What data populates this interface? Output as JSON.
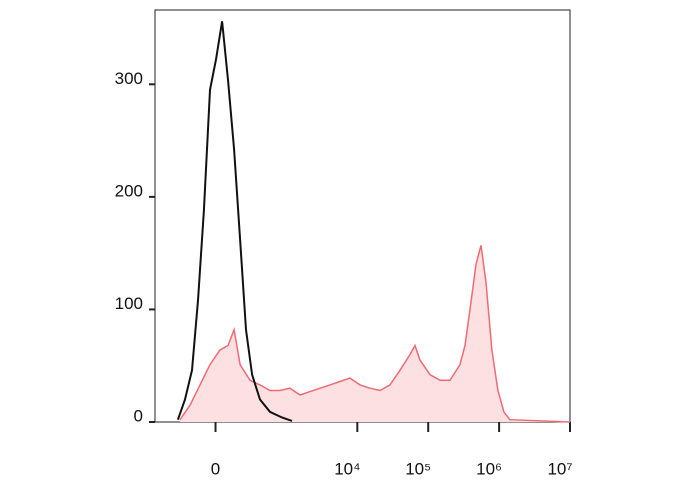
{
  "chart_data": {
    "type": "histogram-overlay",
    "xscale": "biexponential",
    "xlim": [
      -700,
      10000000
    ],
    "xticks": [
      0,
      {
        "value": 10000,
        "label": "10⁴"
      },
      {
        "value": 100000,
        "label": "10⁵"
      },
      {
        "value": 1000000,
        "label": "10⁶"
      },
      {
        "value": 10000000,
        "label": "10⁷"
      }
    ],
    "ylim": [
      0,
      366
    ],
    "yticks": [
      0,
      100,
      200,
      300
    ],
    "series": [
      {
        "color": "#f06a74",
        "fill": "#fde0e2",
        "x": [
          -286,
          -185,
          -105,
          -36,
          29,
          83,
          128,
          177,
          274,
          400,
          570,
          800,
          1114,
          1550,
          2148,
          2980,
          4120,
          5700,
          7880,
          10920,
          15100,
          20900,
          28900,
          40000,
          55400,
          65200,
          76600,
          106000,
          146600,
          202800,
          280800,
          330200,
          388400,
          472200,
          555800,
          653600,
          792600,
          962600,
          1169000,
          1421400,
          10000000
        ],
        "values": [
          2,
          15,
          33,
          51,
          64,
          68,
          82,
          51,
          37,
          33,
          28,
          28,
          30,
          24,
          27,
          30,
          33,
          36,
          39,
          33,
          30,
          28,
          33,
          46,
          60,
          68,
          55,
          42,
          37,
          37,
          51,
          68,
          100,
          140,
          157,
          124,
          64,
          28,
          9,
          2,
          0
        ]
      },
      {
        "color": "#111111",
        "x": [
          -310,
          -232,
          -168,
          -120,
          -77,
          -36,
          3,
          43,
          83,
          128,
          177,
          232,
          298,
          400,
          570,
          856,
          1190
        ],
        "values": [
          2,
          20,
          46,
          108,
          188,
          295,
          322,
          356,
          304,
          242,
          162,
          82,
          42,
          20,
          9,
          4,
          1
        ]
      }
    ]
  }
}
